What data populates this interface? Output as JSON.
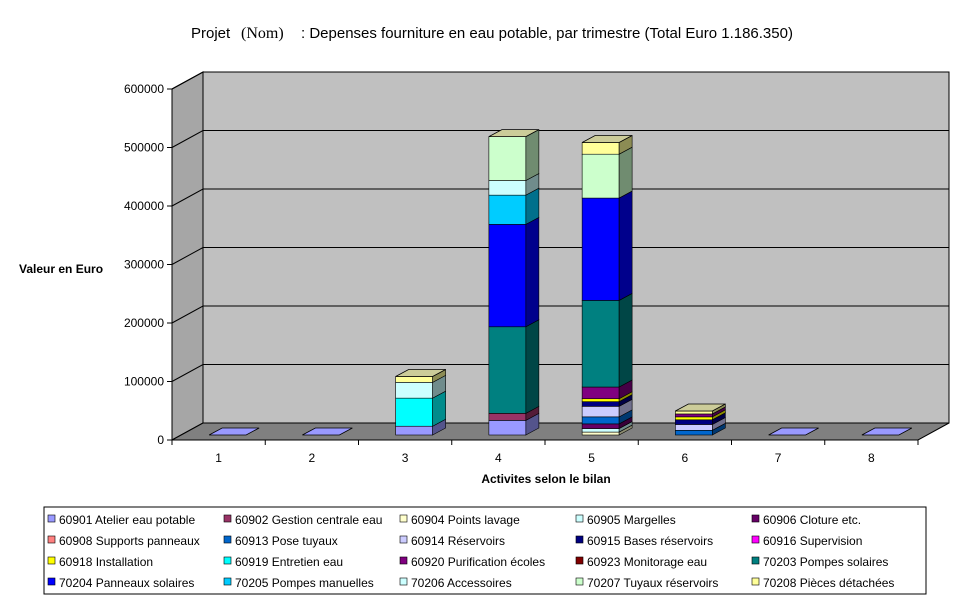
{
  "chart_data": {
    "type": "bar",
    "subtype": "stacked-3d",
    "title": {
      "prefix": "Projet",
      "name": "(Nom)",
      "rest": ": Depenses fourniture en eau potable, par trimestre (Total Euro 1.186.350)"
    },
    "xlabel": "Activites selon le bilan",
    "ylabel": "Valeur en Euro",
    "ylim": [
      0,
      600000
    ],
    "yticks": [
      "0",
      "100000",
      "200000",
      "300000",
      "400000",
      "500000",
      "600000"
    ],
    "categories": [
      "1",
      "2",
      "3",
      "4",
      "5",
      "6",
      "7",
      "8"
    ],
    "grid": true,
    "legend_position": "bottom",
    "series": [
      {
        "name": "60901 Atelier eau potable",
        "color": "#9999ff",
        "values": [
          0,
          0,
          15000,
          25000,
          0,
          0,
          0,
          0
        ]
      },
      {
        "name": "60902 Gestion centrale eau",
        "color": "#993366",
        "values": [
          0,
          0,
          0,
          12000,
          0,
          0,
          0,
          0
        ]
      },
      {
        "name": "60904 Points lavage",
        "color": "#ffffcc",
        "values": [
          0,
          0,
          0,
          0,
          5000,
          0,
          0,
          0
        ]
      },
      {
        "name": "60905 Margelles",
        "color": "#ccffff",
        "values": [
          0,
          0,
          0,
          0,
          6000,
          0,
          0,
          0
        ]
      },
      {
        "name": "60906 Cloture etc.",
        "color": "#660066",
        "values": [
          0,
          0,
          0,
          0,
          8000,
          0,
          0,
          0
        ]
      },
      {
        "name": "60908 Supports panneaux",
        "color": "#ff8080",
        "values": [
          0,
          0,
          0,
          0,
          0,
          0,
          0,
          0
        ]
      },
      {
        "name": "60913 Pose tuyaux",
        "color": "#0066cc",
        "values": [
          0,
          0,
          0,
          0,
          12000,
          8000,
          0,
          0
        ]
      },
      {
        "name": "60914 Réservoirs",
        "color": "#ccccff",
        "values": [
          0,
          0,
          0,
          0,
          18000,
          10000,
          0,
          0
        ]
      },
      {
        "name": "60915 Bases réservoirs",
        "color": "#000080",
        "values": [
          0,
          0,
          0,
          0,
          8000,
          8000,
          0,
          0
        ]
      },
      {
        "name": "60916 Supervision",
        "color": "#ff00ff",
        "values": [
          0,
          0,
          0,
          0,
          0,
          0,
          0,
          0
        ]
      },
      {
        "name": "60918 Installation",
        "color": "#ffff00",
        "values": [
          0,
          0,
          0,
          0,
          5000,
          5000,
          0,
          0
        ]
      },
      {
        "name": "60919 Entretien eau",
        "color": "#00ffff",
        "values": [
          0,
          0,
          48000,
          0,
          0,
          0,
          0,
          0
        ]
      },
      {
        "name": "60920 Purification écoles",
        "color": "#800080",
        "values": [
          0,
          0,
          0,
          0,
          20000,
          5000,
          0,
          0
        ]
      },
      {
        "name": "60923 Monitorage eau",
        "color": "#800000",
        "values": [
          0,
          0,
          0,
          0,
          0,
          0,
          0,
          0
        ]
      },
      {
        "name": "70203 Pompes solaires",
        "color": "#008080",
        "values": [
          0,
          0,
          0,
          148000,
          148000,
          0,
          0,
          0
        ]
      },
      {
        "name": "70204 Panneaux solaires",
        "color": "#0000ff",
        "values": [
          0,
          0,
          0,
          175000,
          175000,
          0,
          0,
          0
        ]
      },
      {
        "name": "70205 Pompes manuelles",
        "color": "#00ccff",
        "values": [
          0,
          0,
          0,
          50000,
          0,
          0,
          0,
          0
        ]
      },
      {
        "name": "70206 Accessoires",
        "color": "#ccffff",
        "values": [
          0,
          0,
          27000,
          25000,
          0,
          0,
          0,
          0
        ]
      },
      {
        "name": "70207 Tuyaux réservoirs",
        "color": "#ccffcc",
        "values": [
          0,
          0,
          0,
          75000,
          75000,
          0,
          0,
          0
        ]
      },
      {
        "name": "70208 Pièces détachées",
        "color": "#ffff99",
        "values": [
          0,
          0,
          10000,
          0,
          20000,
          5000,
          0,
          0
        ]
      }
    ]
  },
  "colors": {
    "back_wall": "#c0c0c0",
    "side_wall": "#a6a6a6",
    "floor": "#808080",
    "empty_cap": "#9999ff",
    "top_cap": "#cccc99"
  }
}
